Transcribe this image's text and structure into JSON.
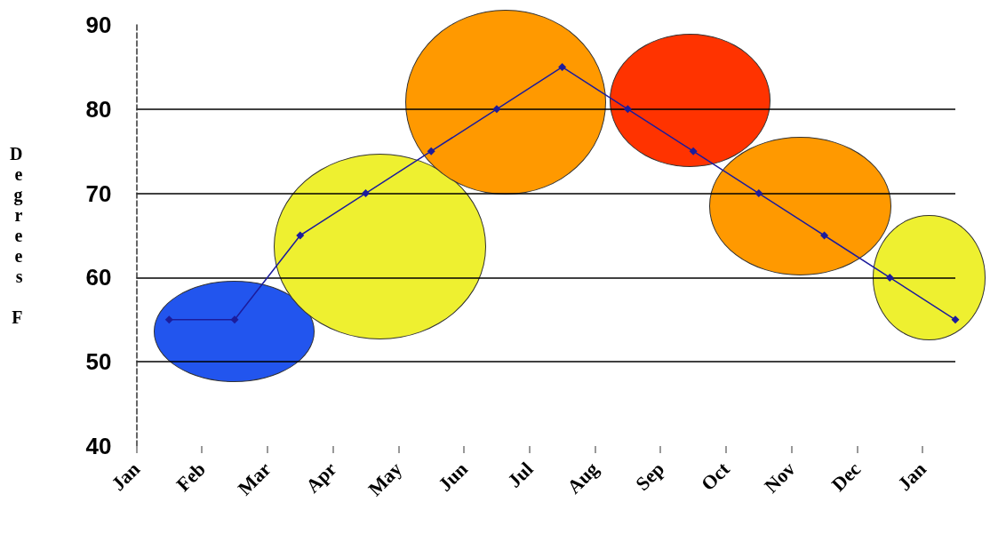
{
  "chart_data": {
    "type": "line",
    "ylabel": "Degrees F",
    "categories": [
      "Jan",
      null,
      "Feb",
      null,
      "Mar",
      null,
      "Apr",
      null,
      "May",
      null,
      "Jun",
      null,
      "Jul",
      null,
      "Aug",
      null,
      "Sep",
      null,
      "Oct",
      null,
      "Nov",
      null,
      "Dec",
      null,
      "Jan",
      null
    ],
    "series": [
      {
        "color": "#1c1c9c",
        "values": [
          null,
          55,
          null,
          55,
          null,
          65,
          null,
          70,
          null,
          75,
          null,
          80,
          null,
          85,
          null,
          80,
          null,
          75,
          null,
          70,
          null,
          65,
          null,
          60,
          null,
          55
        ]
      }
    ],
    "ylim": [
      40,
      90
    ],
    "yticks": [
      40,
      50,
      60,
      70,
      80,
      90
    ],
    "grid": "y",
    "marker": "diamond",
    "line_style": "solid"
  }
}
